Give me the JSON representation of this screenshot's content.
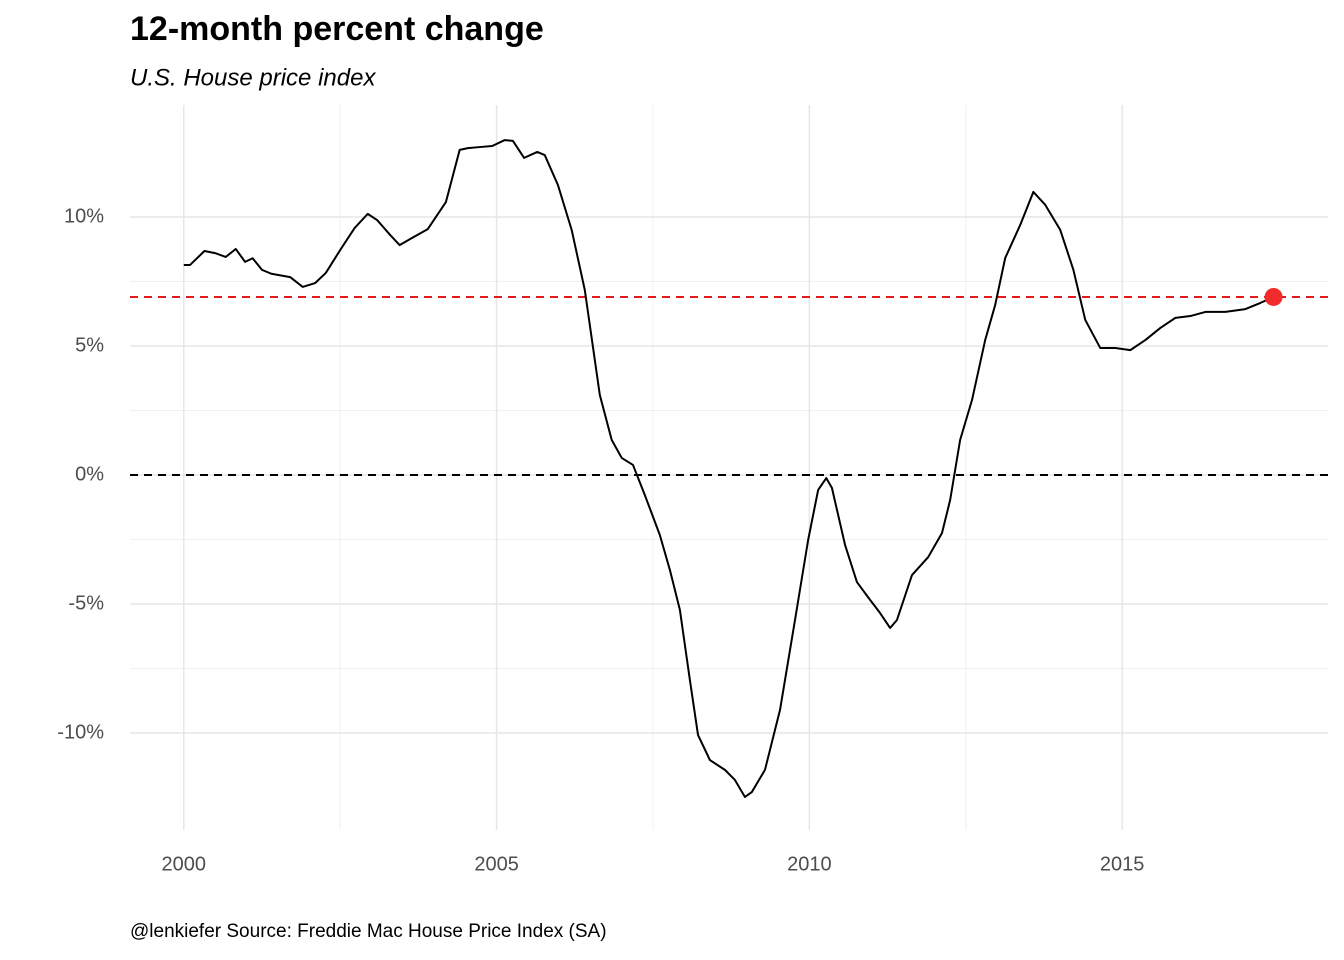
{
  "chart_data": {
    "type": "line",
    "title": "12-month percent change",
    "subtitle": "U.S. House price index",
    "caption": "@lenkiefer Source: Freddie Mac House Price Index (SA)",
    "x": [
      2000.0,
      2000.1,
      2000.33,
      2000.5,
      2000.67,
      2000.83,
      2000.98,
      2001.1,
      2001.25,
      2001.4,
      2001.7,
      2001.9,
      2002.1,
      2002.27,
      2002.5,
      2002.73,
      2002.94,
      2003.09,
      2003.3,
      2003.45,
      2003.65,
      2003.9,
      2004.19,
      2004.41,
      2004.54,
      2004.73,
      2004.93,
      2005.13,
      2005.26,
      2005.44,
      2005.65,
      2005.77,
      2005.98,
      2006.2,
      2006.41,
      2006.65,
      2006.84,
      2007.0,
      2007.18,
      2007.37,
      2007.61,
      2007.77,
      2007.93,
      2008.09,
      2008.22,
      2008.41,
      2008.65,
      2008.81,
      2008.97,
      2009.08,
      2009.29,
      2009.53,
      2009.77,
      2009.98,
      2010.14,
      2010.27,
      2010.36,
      2010.57,
      2010.76,
      2010.97,
      2011.13,
      2011.29,
      2011.4,
      2011.64,
      2011.9,
      2012.12,
      2012.25,
      2012.41,
      2012.6,
      2012.81,
      2012.97,
      2013.13,
      2013.37,
      2013.58,
      2013.77,
      2014.01,
      2014.22,
      2014.41,
      2014.65,
      2014.89,
      2015.13,
      2015.37,
      2015.61,
      2015.85,
      2016.09,
      2016.33,
      2016.65,
      2016.97,
      2017.21,
      2017.42
    ],
    "values": [
      8.14,
      8.14,
      8.68,
      8.6,
      8.45,
      8.76,
      8.26,
      8.4,
      7.95,
      7.8,
      7.67,
      7.29,
      7.44,
      7.83,
      8.72,
      9.57,
      10.12,
      9.88,
      9.3,
      8.91,
      9.19,
      9.53,
      10.58,
      12.6,
      12.67,
      12.71,
      12.75,
      12.98,
      12.95,
      12.29,
      12.52,
      12.4,
      11.24,
      9.5,
      7.17,
      3.1,
      1.36,
      0.66,
      0.39,
      -0.78,
      -2.33,
      -3.68,
      -5.23,
      -7.95,
      -10.08,
      -11.05,
      -11.43,
      -11.82,
      -12.48,
      -12.29,
      -11.43,
      -9.11,
      -5.62,
      -2.52,
      -0.58,
      -0.12,
      -0.5,
      -2.71,
      -4.15,
      -4.84,
      -5.35,
      -5.93,
      -5.62,
      -3.88,
      -3.18,
      -2.25,
      -0.97,
      1.36,
      2.91,
      5.23,
      6.59,
      8.41,
      9.69,
      10.97,
      10.47,
      9.5,
      7.95,
      6.01,
      4.92,
      4.92,
      4.84,
      5.23,
      5.7,
      6.09,
      6.16,
      6.32,
      6.32,
      6.43,
      6.67,
      6.9
    ],
    "color": "#000000",
    "highlight_color": "#f22c2c",
    "hlines": [
      {
        "value": 0,
        "color": "#000000"
      },
      {
        "value": 6.9,
        "color": "#e31a1c"
      }
    ],
    "xlim": [
      1999.14,
      2018.29
    ],
    "xticks": [
      2000,
      2005,
      2010,
      2015
    ],
    "ylim": [
      -13.76,
      14.34
    ],
    "yticks": [
      {
        "value": -10,
        "label": "-10%"
      },
      {
        "value": -5,
        "label": "-5%"
      },
      {
        "value": 0,
        "label": "0%"
      },
      {
        "value": 5,
        "label": "5%"
      },
      {
        "value": 10,
        "label": "10%"
      }
    ],
    "grid": true
  }
}
